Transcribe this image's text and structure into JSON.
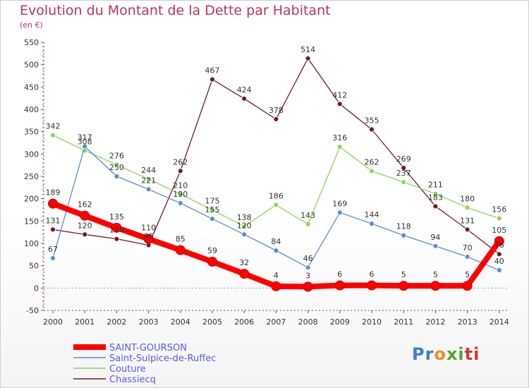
{
  "title": "Evolution du Montant de la Dette par Habitant",
  "subtitle": "(en €)",
  "logo_letters": [
    "P",
    "r",
    "o",
    "x",
    "i",
    "t",
    "i"
  ],
  "logo_colors": [
    "#3a7fd0",
    "#3a7fd0",
    "#f08c1a",
    "#4fa62f",
    "#4fa62f",
    "#d03a2f",
    "#d03a2f"
  ],
  "chart_data": {
    "type": "line",
    "title": "Evolution du Montant de la Dette par Habitant",
    "subtitle": "(en €)",
    "x": [
      "2000",
      "2001",
      "2002",
      "2003",
      "2004",
      "2005",
      "2006",
      "2007",
      "2008",
      "2009",
      "2010",
      "2011",
      "2012",
      "2013",
      "2014"
    ],
    "ylim": [
      -50,
      550
    ],
    "yticks": [
      -50,
      0,
      50,
      100,
      150,
      200,
      250,
      300,
      350,
      400,
      450,
      500,
      550
    ],
    "grid": false,
    "legend_position": "bottom-left",
    "series": [
      {
        "name": "SAINT-GOURSON",
        "color": "#ff0000",
        "values": [
          189,
          162,
          135,
          110,
          85,
          59,
          32,
          4,
          3,
          6,
          6,
          5,
          5,
          5,
          105
        ]
      },
      {
        "name": "Saint-Sulpice-de-Ruffec",
        "color": "#5b8fc9",
        "values": [
          67,
          317,
          250,
          221,
          190,
          155,
          120,
          84,
          46,
          169,
          144,
          118,
          94,
          70,
          40
        ]
      },
      {
        "name": "Couture",
        "color": "#8fd45a",
        "values": [
          342,
          308,
          276,
          244,
          210,
          175,
          138,
          186,
          143,
          316,
          262,
          237,
          211,
          180,
          156
        ]
      },
      {
        "name": "Chassiecq",
        "color": "#6b1f24",
        "values": [
          131,
          120,
          110,
          96,
          262,
          467,
          424,
          378,
          514,
          412,
          355,
          269,
          183,
          131,
          76
        ]
      }
    ]
  }
}
